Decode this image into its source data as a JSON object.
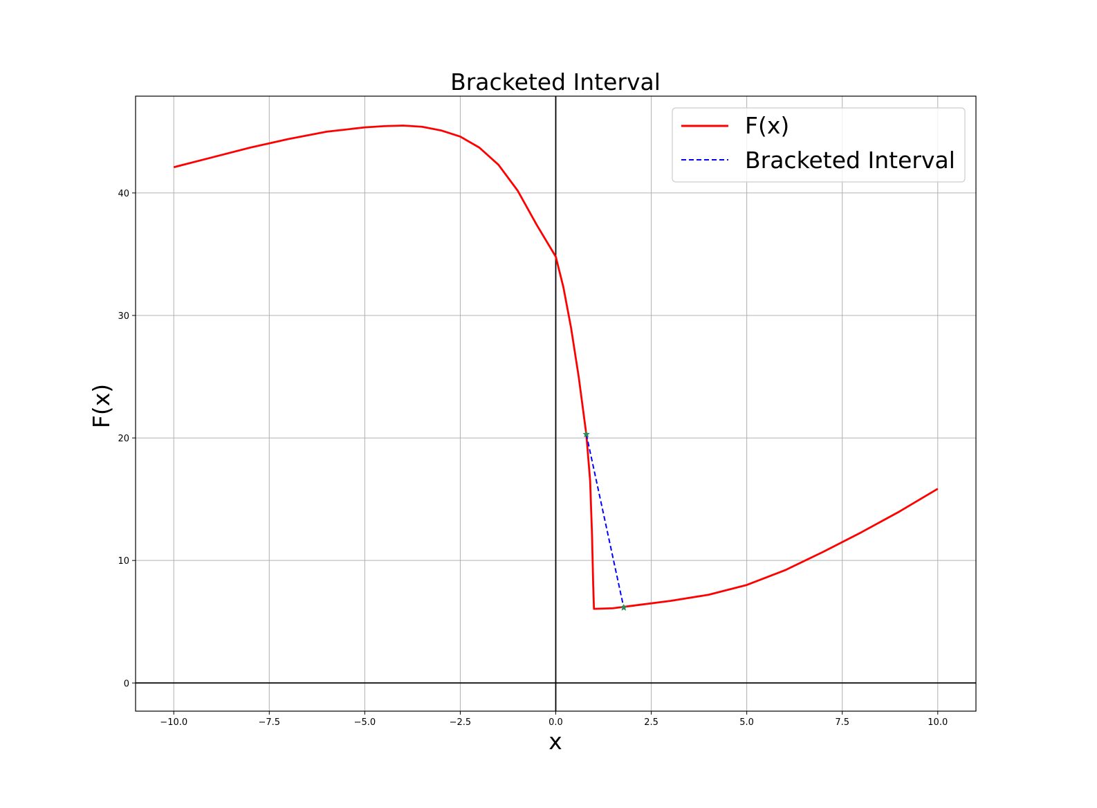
{
  "chart_data": {
    "type": "line",
    "title": "Bracketed Interval",
    "xlabel": "x",
    "ylabel": "F(x)",
    "xlim": [
      -11,
      11
    ],
    "ylim": [
      -2.3,
      47.9
    ],
    "grid": true,
    "legend_position": "upper right",
    "xticks": [
      -10.0,
      -7.5,
      -5.0,
      -2.5,
      0.0,
      2.5,
      5.0,
      7.5,
      10.0
    ],
    "xtick_labels": [
      "−10.0",
      "−7.5",
      "−5.0",
      "−2.5",
      "0.0",
      "2.5",
      "5.0",
      "7.5",
      "10.0"
    ],
    "yticks": [
      0,
      10,
      20,
      30,
      40
    ],
    "ytick_labels": [
      "0",
      "10",
      "20",
      "30",
      "40"
    ],
    "reference_lines": {
      "x": 0,
      "y": 0,
      "color": "#000000"
    },
    "series": [
      {
        "name": "F(x)",
        "color": "#ff0000",
        "style": "solid",
        "x": [
          -10.0,
          -9.0,
          -8.0,
          -7.0,
          -6.0,
          -5.0,
          -4.5,
          -4.0,
          -3.5,
          -3.0,
          -2.5,
          -2.0,
          -1.5,
          -1.0,
          -0.5,
          0.0,
          0.2,
          0.4,
          0.6,
          0.8,
          0.9,
          0.95,
          0.98,
          1.0,
          1.5,
          2.0,
          3.0,
          4.0,
          5.0,
          6.0,
          7.0,
          8.0,
          9.0,
          10.0
        ],
        "y": [
          42.1,
          42.9,
          43.7,
          44.4,
          45.0,
          45.35,
          45.45,
          45.5,
          45.4,
          45.1,
          44.6,
          43.7,
          42.3,
          40.2,
          37.4,
          34.8,
          32.3,
          29.0,
          25.0,
          20.3,
          16.5,
          12.0,
          8.0,
          6.05,
          6.1,
          6.3,
          6.7,
          7.2,
          8.0,
          9.2,
          10.7,
          12.3,
          14.0,
          15.85
        ]
      },
      {
        "name": "Bracketed Interval",
        "color": "#0000ff",
        "style": "dashed",
        "x": [
          0.8,
          1.78
        ],
        "y": [
          20.3,
          6.15
        ]
      }
    ],
    "markers": [
      {
        "x": 0.8,
        "y": 20.3,
        "color": "#2e8b57",
        "shape": "star"
      },
      {
        "x": 1.78,
        "y": 6.15,
        "color": "#2e8b57",
        "shape": "star"
      }
    ]
  }
}
